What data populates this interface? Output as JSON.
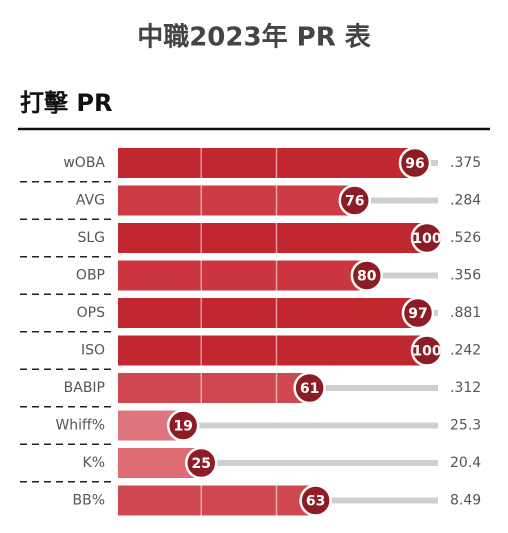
{
  "chart_data": {
    "type": "bar",
    "title": "中職2023年 PR 表",
    "subtitle": "打擊 PR",
    "categories": [
      "wOBA",
      "AVG",
      "SLG",
      "OBP",
      "OPS",
      "ISO",
      "BABIP",
      "Whiff%",
      "K%",
      "BB%"
    ],
    "values": [
      96,
      76,
      100,
      80,
      97,
      100,
      61,
      19,
      25,
      63
    ],
    "colors": [
      "#c1272f",
      "#cc3b44",
      "#c1272f",
      "#ca353e",
      "#c1272f",
      "#c1272f",
      "#cf4850",
      "#e0767d",
      "#de6c73",
      "#cf4850"
    ],
    "stats": {
      "values": [
        0.375,
        0.284,
        0.526,
        0.356,
        0.881,
        0.242,
        0.312,
        25.3,
        20.4,
        8.49
      ],
      "value_labels": [
        ".375",
        ".284",
        ".526",
        ".356",
        ".881",
        ".242",
        ".312",
        "25.3",
        "20.4",
        "8.49"
      ]
    },
    "xlim": [
      0,
      100
    ],
    "grid_values": [
      25,
      50
    ]
  }
}
